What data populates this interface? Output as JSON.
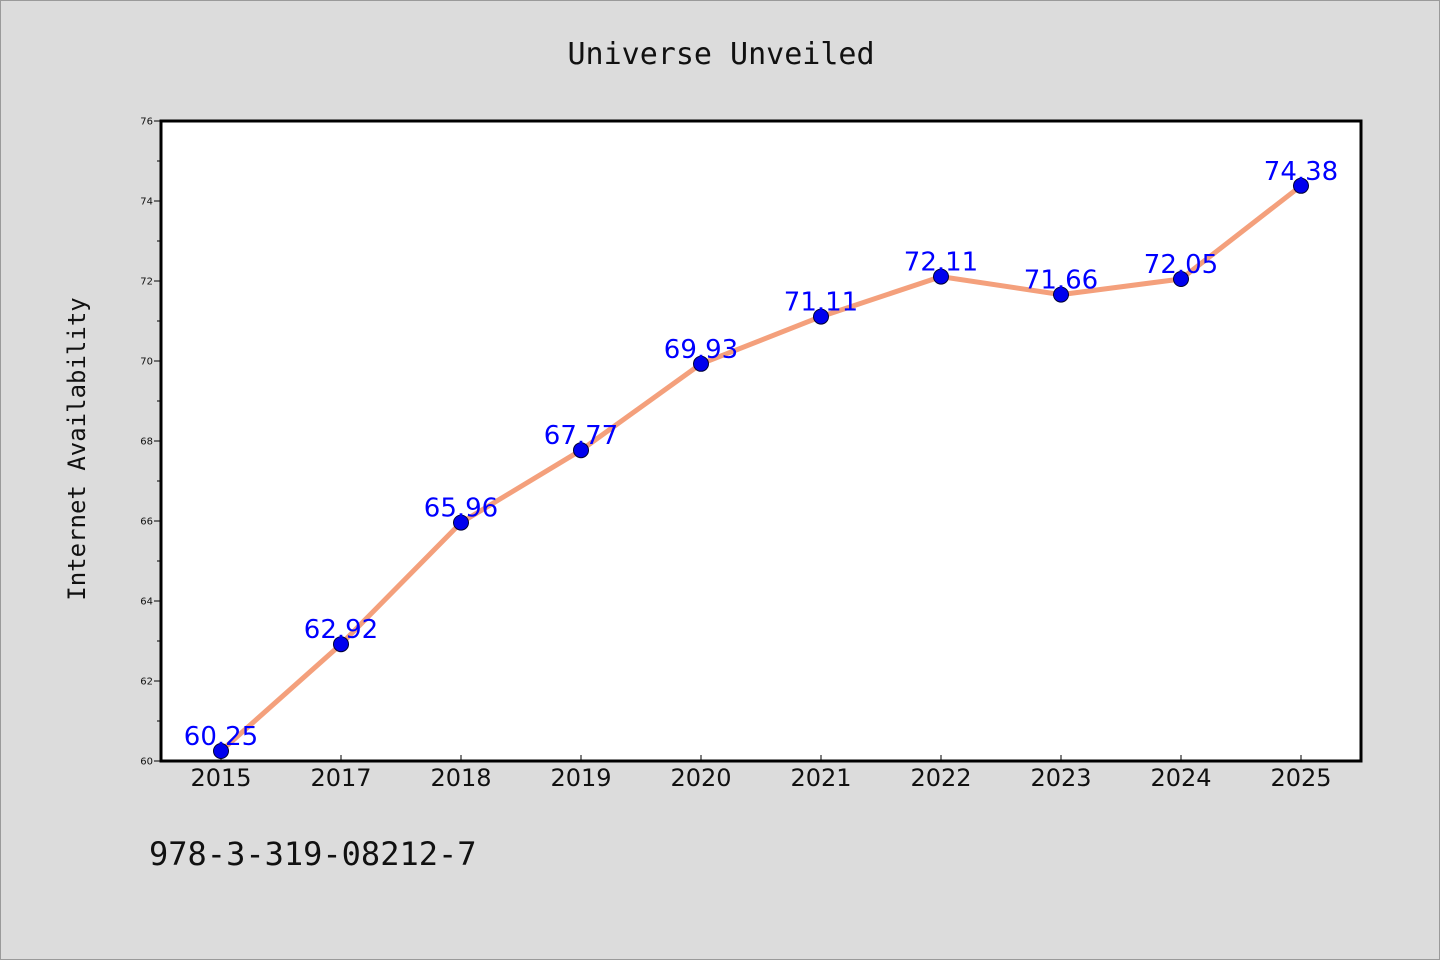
{
  "chart_data": {
    "type": "line",
    "title": "Universe Unveiled",
    "xlabel": "",
    "ylabel": "Internet Availability",
    "categories": [
      "2015",
      "2017",
      "2018",
      "2019",
      "2020",
      "2021",
      "2022",
      "2023",
      "2024",
      "2025"
    ],
    "series": [
      {
        "values": [
          60.25,
          62.92,
          65.96,
          67.77,
          69.93,
          71.11,
          72.11,
          71.66,
          72.05,
          74.38
        ]
      }
    ],
    "data_labels": [
      "60.25",
      "62.92",
      "65.96",
      "67.77",
      "69.93",
      "71.11",
      "72.11",
      "71.66",
      "72.05",
      "74.38"
    ],
    "ylim": [
      60,
      76
    ],
    "yticks": [
      "60",
      "62",
      "64",
      "66",
      "68",
      "70",
      "72",
      "74",
      "76"
    ],
    "grid": false,
    "legend": "none",
    "colors": {
      "line": "#f4a07c",
      "marker": "#0000ee",
      "data_label": "#0000ff",
      "background": "#dcdcdc",
      "plot_background": "#ffffff"
    }
  },
  "footer": {
    "isbn": "978-3-319-08212-7"
  }
}
